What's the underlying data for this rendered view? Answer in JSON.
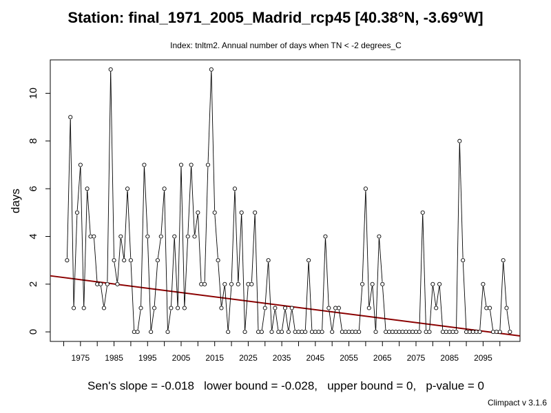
{
  "chart_data": {
    "type": "line",
    "title": "Station: final_1971_2005_Madrid_rcp45 [40.38°N, -3.69°W]",
    "subtitle": "Index: tnltm2. Annual number of days when TN < -2 degrees_C",
    "xlabel": "",
    "ylabel": "days",
    "xlim": [
      1966,
      2106
    ],
    "ylim": [
      -0.4,
      11.4
    ],
    "xticks": [
      1975,
      1985,
      1995,
      2005,
      2015,
      2025,
      2035,
      2045,
      2055,
      2065,
      2075,
      2085,
      2095
    ],
    "yticks": [
      0,
      2,
      4,
      6,
      8,
      10
    ],
    "grid": false,
    "x_start": 1971,
    "series": [
      {
        "values": [
          3,
          9,
          1,
          5,
          7,
          1,
          6,
          4,
          4,
          2,
          2,
          1,
          2,
          11,
          3,
          2,
          4,
          3,
          6,
          3,
          0,
          0,
          1,
          7,
          4,
          0,
          1,
          3,
          4,
          6,
          0,
          1,
          4,
          1,
          7,
          1,
          4,
          7,
          4,
          5,
          2,
          2,
          7,
          11,
          5,
          3,
          1,
          2,
          0,
          2,
          6,
          2,
          5,
          0,
          2,
          2,
          5,
          0,
          0,
          1,
          3,
          0,
          1,
          0,
          0,
          1,
          0,
          1,
          0,
          0,
          0,
          0,
          3,
          0,
          0,
          0,
          0,
          4,
          1,
          0,
          1,
          1,
          0,
          0,
          0,
          0,
          0,
          0,
          2,
          6,
          1,
          2,
          0,
          4,
          2,
          0,
          0,
          0,
          0,
          0,
          0,
          0,
          0,
          0,
          0,
          0,
          5,
          0,
          0,
          2,
          1,
          2,
          0,
          0,
          0,
          0,
          0,
          8,
          3,
          0,
          0,
          0,
          0,
          0,
          2,
          1,
          1,
          0,
          0,
          0,
          3,
          1,
          0
        ]
      }
    ],
    "trend": {
      "name": "Sen's slope",
      "x": [
        1966,
        2106
      ],
      "y": [
        2.35,
        -0.17
      ],
      "color": "#8b0000"
    }
  },
  "annotation": {
    "sens_text": "Sen's slope = -0.018   lower bound = -0.028,   upper bound = 0,   p-value = 0",
    "version": "Climpact v 3.1.6"
  }
}
